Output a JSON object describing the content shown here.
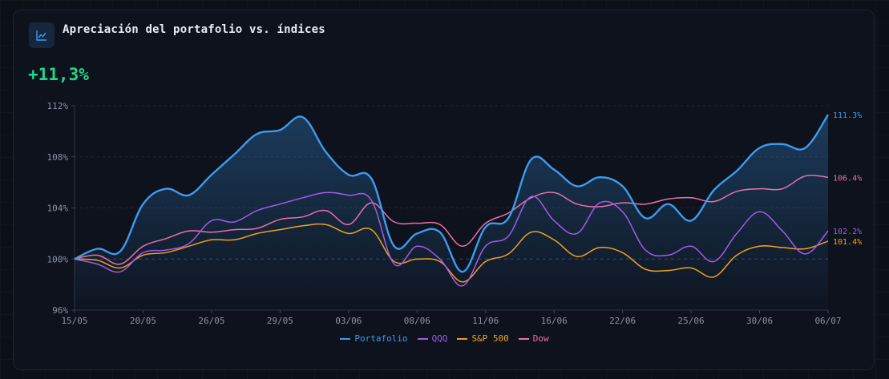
{
  "header": {
    "title": "Apreciación del portafolio vs. índices",
    "icon": "line-chart-icon",
    "performance": "+11,3%"
  },
  "colors": {
    "portfolio": "#3d9bf0",
    "qqq": "#a35be8",
    "sp500": "#f0a020",
    "dow": "#ec6fac",
    "positive": "#1fd68a"
  },
  "chart_data": {
    "type": "line",
    "ylim": [
      96,
      112
    ],
    "yticks": [
      "112%",
      "108%",
      "104%",
      "100%",
      "96%"
    ],
    "ytick_values": [
      112,
      108,
      104,
      100,
      96
    ],
    "reference_line": 100,
    "grid": true,
    "legend_position": "bottom",
    "xlabels": [
      "15/05",
      "20/05",
      "26/05",
      "29/05",
      "03/06",
      "08/06",
      "11/06",
      "16/06",
      "22/06",
      "25/06",
      "30/06",
      "06/07"
    ],
    "series": [
      {
        "name": "Portafolio",
        "color": "#3d9bf0",
        "end_label": "111.3%",
        "values": [
          100,
          100.8,
          100.6,
          104.3,
          105.5,
          105,
          106.6,
          108.2,
          109.8,
          110.1,
          111.1,
          108.4,
          106.6,
          106.3,
          101,
          102,
          102.1,
          99,
          102.5,
          103.2,
          107.8,
          107,
          105.7,
          106.4,
          105.7,
          103.2,
          104.3,
          103,
          105.4,
          106.9,
          108.7,
          109,
          108.7,
          111.3
        ]
      },
      {
        "name": "QQQ",
        "color": "#a35be8",
        "end_label": "102.2%",
        "values": [
          100,
          99.6,
          99,
          100.5,
          100.7,
          101.2,
          103,
          102.9,
          103.8,
          104.3,
          104.8,
          105.2,
          105,
          104.6,
          99.6,
          101,
          100,
          97.9,
          101,
          101.8,
          104.9,
          103,
          102,
          104.4,
          103.7,
          100.7,
          100.3,
          101,
          99.8,
          102,
          103.7,
          102.2,
          100.4,
          102.2
        ]
      },
      {
        "name": "S&P 500",
        "color": "#f0a020",
        "end_label": "101.4%",
        "values": [
          100,
          99.9,
          99.3,
          100.3,
          100.5,
          101,
          101.5,
          101.5,
          102,
          102.3,
          102.6,
          102.7,
          102,
          102.3,
          99.8,
          100,
          99.8,
          98.2,
          99.8,
          100.4,
          102.1,
          101.5,
          100.2,
          100.9,
          100.5,
          99.2,
          99.1,
          99.3,
          98.6,
          100.3,
          101,
          100.9,
          100.8,
          101.4
        ]
      },
      {
        "name": "Dow",
        "color": "#ec6fac",
        "end_label": "106.4%",
        "values": [
          100,
          100.3,
          99.6,
          101,
          101.6,
          102.2,
          102.1,
          102.3,
          102.4,
          103.1,
          103.3,
          103.8,
          102.7,
          104.4,
          102.9,
          102.8,
          102.7,
          101,
          102.8,
          103.6,
          104.8,
          105.2,
          104.3,
          104.1,
          104.4,
          104.3,
          104.7,
          104.8,
          104.5,
          105.3,
          105.5,
          105.5,
          106.5,
          106.4
        ]
      }
    ]
  }
}
